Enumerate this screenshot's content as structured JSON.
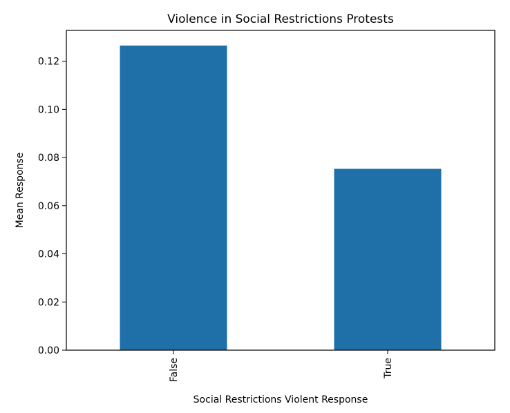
{
  "chart_data": {
    "type": "bar",
    "title": "Violence in Social Restrictions Protests",
    "xlabel": "Social Restrictions Violent Response",
    "ylabel": "Mean Response",
    "categories": [
      "False",
      "True"
    ],
    "values": [
      0.1265,
      0.0753
    ],
    "ylim": [
      0,
      0.1328
    ],
    "yticks": [
      0.0,
      0.02,
      0.04,
      0.06,
      0.08,
      0.1,
      0.12
    ],
    "ytick_labels": [
      "0.00",
      "0.02",
      "0.04",
      "0.06",
      "0.08",
      "0.10",
      "0.12"
    ],
    "bar_color": "#1f6fa8",
    "grid": false,
    "legend": false
  }
}
